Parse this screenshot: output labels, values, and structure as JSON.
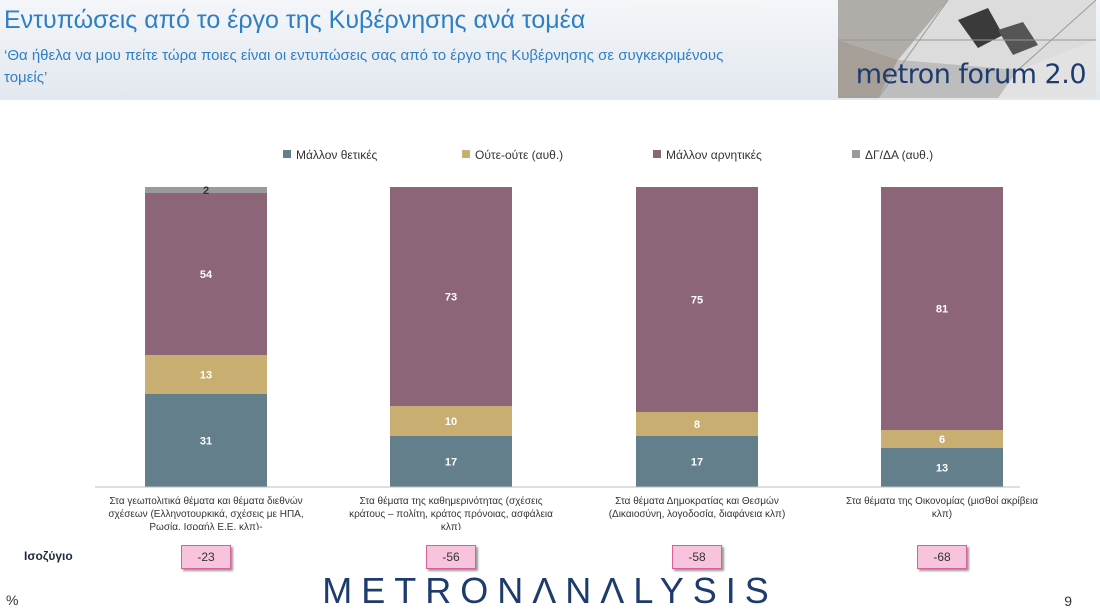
{
  "header": {
    "title": "Εντυπώσεις από το έργο της Κυβέρνησης ανά τομέα",
    "subtitle": "‘Θα ήθελα να μου πείτε τώρα ποιες είναι οι εντυπώσεις σας από το έργο της Κυβέρνησης σε συγκεκριμένους τομείς’",
    "logo_text": "metron forum 2.0"
  },
  "chart_data": {
    "type": "bar",
    "stacked": true,
    "orientation": "vertical",
    "legend_position": "top",
    "ylim": [
      0,
      100
    ],
    "categories": [
      [
        "Στα γεωπολιτικά θέματα και θέματα διεθνών",
        "σχέσεων (Ελληνοτουρκικά, σχέσεις με ΗΠΑ,",
        "Ρωσία, Ισραήλ Ε.Ε. κλπ)-"
      ],
      [
        "Στα θέματα της καθημερινότητας (σχέσεις",
        "κράτους – πολίτη, κράτος πρόνοιας, ασφάλεια",
        "κλπ)"
      ],
      [
        "Στα θέματα Δημοκρατίας και Θεσμών",
        "(Δικαιοσύνη, λογοδοσία, διαφάνεια κλπ)"
      ],
      [
        "Στα θέματα της Οικονομίας (μισθοί ακρίβεια",
        "κλπ)"
      ]
    ],
    "series": [
      {
        "name": "Μάλλον θετικές",
        "color": "#637f8b",
        "values": [
          31,
          17,
          17,
          13
        ]
      },
      {
        "name": "Ούτε-ούτε  (αυθ.)",
        "color": "#c9ae72",
        "values": [
          13,
          10,
          8,
          6
        ]
      },
      {
        "name": "Μάλλον αρνητικές",
        "color": "#8d6579",
        "values": [
          54,
          73,
          75,
          81
        ]
      },
      {
        "name": "ΔΓ/ΔΑ (αυθ.)",
        "color": "#9a9a9a",
        "values": [
          2,
          0,
          0,
          0
        ]
      }
    ],
    "balance_label": "Ισοζύγιο",
    "balance": [
      "-23",
      "-56",
      "-58",
      "-68"
    ]
  },
  "footer": {
    "logo_text": "METRONΛNΛLYSIS",
    "percent_sign": "%",
    "page_number": "9"
  }
}
